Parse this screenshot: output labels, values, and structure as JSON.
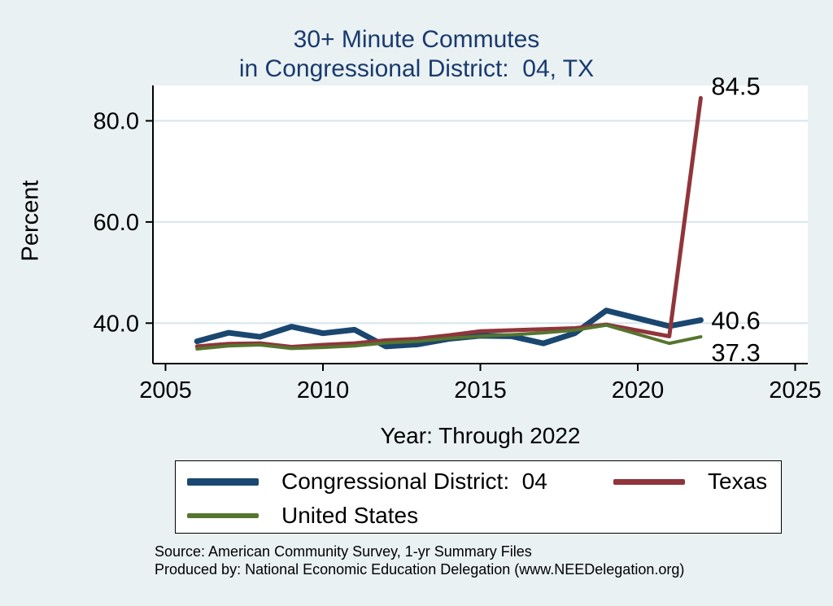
{
  "title": {
    "line1": "30+ Minute Commutes",
    "line2": "in Congressional District:  04, TX"
  },
  "footer": {
    "source": "Source: American Community Survey, 1-yr Summary Files",
    "produced_by": "Produced by: National Economic Education Delegation (www.NEEDelegation.org)"
  },
  "colors": {
    "background": "#e9f1f3",
    "plot_background": "#ffffff",
    "grid": "#d6e6ec",
    "axis": "#000000",
    "title_text": "#1a3a6e"
  },
  "chart_data": {
    "type": "line",
    "title": "30+ Minute Commutes",
    "subtitle": "in Congressional District:  04, TX",
    "xlabel": "Year: Through 2022",
    "ylabel": "Percent",
    "grid": true,
    "legend_position": "bottom",
    "xlim": [
      2004.6,
      2025.4
    ],
    "ylim": [
      32,
      87
    ],
    "xticks": [
      2005,
      2010,
      2015,
      2020,
      2025
    ],
    "yticks": [
      40,
      60,
      80
    ],
    "ytick_labels": [
      "40.0",
      "60.0",
      "80.0"
    ],
    "x": [
      2006,
      2007,
      2008,
      2009,
      2010,
      2011,
      2012,
      2013,
      2014,
      2015,
      2016,
      2017,
      2018,
      2019,
      2021,
      2022
    ],
    "series": [
      {
        "name": "Congressional District:  04",
        "color": "#1a476f",
        "width": 7,
        "end_label": "40.6",
        "values": [
          36.4,
          38.1,
          37.3,
          39.3,
          38.0,
          38.7,
          35.4,
          35.8,
          36.9,
          37.5,
          37.4,
          36.0,
          38.0,
          42.5,
          39.4,
          40.6
        ]
      },
      {
        "name": "Texas",
        "color": "#90353b",
        "width": 5,
        "end_label": "84.5",
        "values": [
          35.4,
          35.9,
          36.0,
          35.3,
          35.7,
          36.0,
          36.6,
          36.9,
          37.6,
          38.4,
          38.6,
          38.8,
          39.0,
          39.7,
          37.4,
          84.5
        ]
      },
      {
        "name": "United States",
        "color": "#55752f",
        "width": 4,
        "end_label": "37.3",
        "values": [
          34.9,
          35.5,
          35.7,
          35.0,
          35.2,
          35.5,
          36.1,
          36.4,
          37.0,
          37.4,
          37.7,
          38.1,
          38.6,
          39.6,
          36.0,
          37.3
        ]
      }
    ]
  }
}
